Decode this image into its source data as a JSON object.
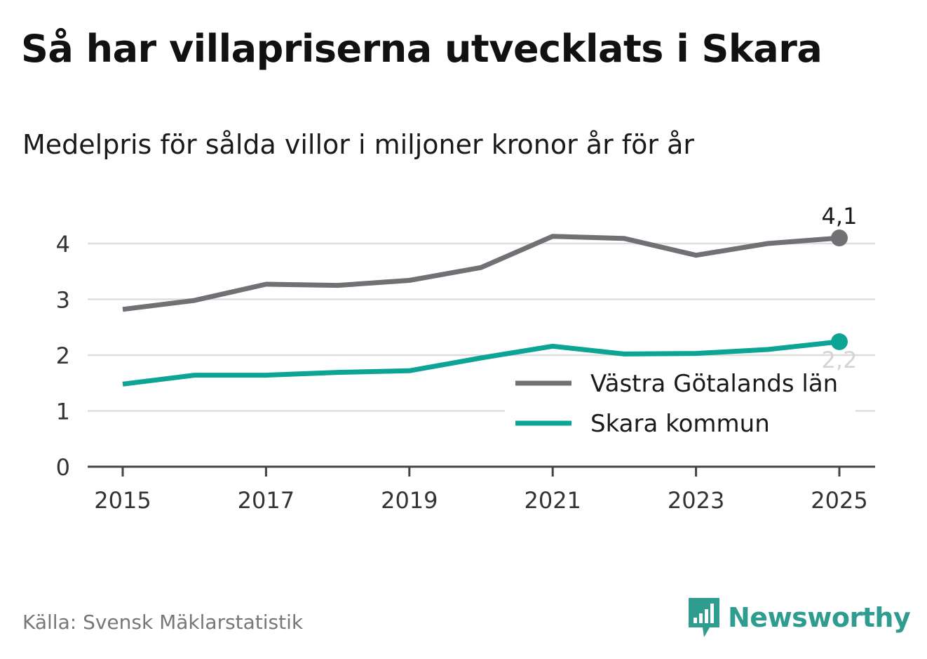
{
  "title": "Så har villapriserna utvecklats i Skara",
  "subtitle": "Medelpris för sålda villor i miljoner kronor år för år",
  "source": "Källa: Svensk Mäklarstatistik",
  "brand": "Newsworthy",
  "colors": {
    "series1": "#707075",
    "series2": "#0ca494",
    "grid": "#dddddd",
    "axis": "#444444",
    "brand": "#2e9c8e"
  },
  "chart_data": {
    "type": "line",
    "title": "Så har villapriserna utvecklats i Skara",
    "subtitle": "Medelpris för sålda villor i miljoner kronor år för år",
    "xlabel": "",
    "ylabel": "",
    "x": [
      2015,
      2016,
      2017,
      2018,
      2019,
      2020,
      2021,
      2022,
      2023,
      2024,
      2025
    ],
    "xticks": [
      "2015",
      "2017",
      "2019",
      "2021",
      "2023",
      "2025"
    ],
    "yticks": [
      "0",
      "1",
      "2",
      "3",
      "4"
    ],
    "ylim": [
      0,
      4.5
    ],
    "grid": true,
    "legend_position": "bottom-right",
    "series": [
      {
        "name": "Västra Götalands län",
        "values": [
          2.82,
          2.98,
          3.27,
          3.25,
          3.34,
          3.57,
          4.13,
          4.09,
          3.79,
          4.0,
          4.1
        ],
        "end_label": "4,1"
      },
      {
        "name": "Skara kommun",
        "values": [
          1.48,
          1.64,
          1.64,
          1.69,
          1.72,
          1.95,
          2.16,
          2.02,
          2.03,
          2.1,
          2.24
        ],
        "end_label": "2,2"
      }
    ]
  }
}
